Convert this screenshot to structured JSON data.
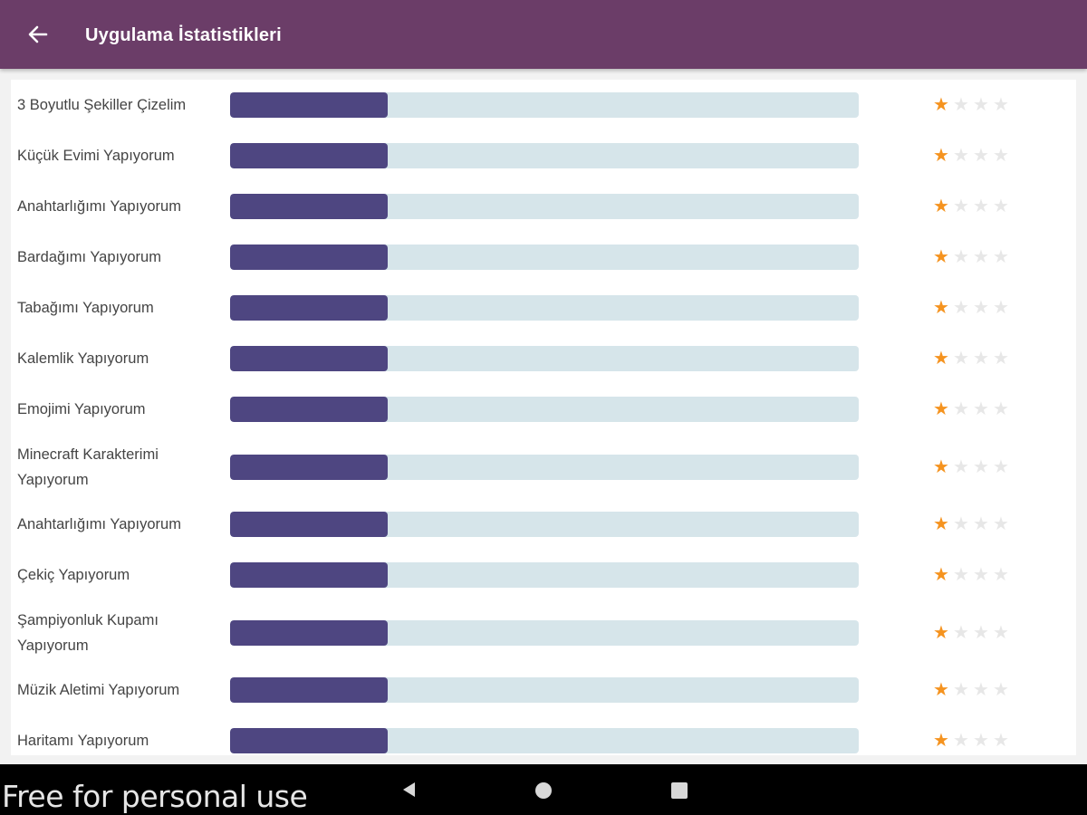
{
  "app": {
    "title": "Uygulama İstatistikleri"
  },
  "colors": {
    "appbar": "#6b3d68",
    "bar_fill": "#4e4681",
    "bar_track": "#d6e5ea",
    "star_on": "#f5931f",
    "star_off": "#e7e7e7"
  },
  "icons": {
    "back": "arrow-left-icon",
    "star": "star-icon"
  },
  "stats": [
    {
      "label": "3 Boyutlu Şekiller Çizelim",
      "progress": 0.25,
      "stars": 1,
      "max_stars": 4
    },
    {
      "label": "Küçük Evimi Yapıyorum",
      "progress": 0.25,
      "stars": 1,
      "max_stars": 4
    },
    {
      "label": "Anahtarlığımı Yapıyorum",
      "progress": 0.25,
      "stars": 1,
      "max_stars": 4
    },
    {
      "label": "Bardağımı Yapıyorum",
      "progress": 0.25,
      "stars": 1,
      "max_stars": 4
    },
    {
      "label": "Tabağımı Yapıyorum",
      "progress": 0.25,
      "stars": 1,
      "max_stars": 4
    },
    {
      "label": "Kalemlik Yapıyorum",
      "progress": 0.25,
      "stars": 1,
      "max_stars": 4
    },
    {
      "label": "Emojimi Yapıyorum",
      "progress": 0.25,
      "stars": 1,
      "max_stars": 4
    },
    {
      "label": "Minecraft Karakterimi Yapıyorum",
      "progress": 0.25,
      "stars": 1,
      "max_stars": 4
    },
    {
      "label": "Anahtarlığımı Yapıyorum",
      "progress": 0.25,
      "stars": 1,
      "max_stars": 4
    },
    {
      "label": "Çekiç Yapıyorum",
      "progress": 0.25,
      "stars": 1,
      "max_stars": 4
    },
    {
      "label": "Şampiyonluk Kupamı Yapıyorum",
      "progress": 0.25,
      "stars": 1,
      "max_stars": 4
    },
    {
      "label": "Müzik Aletimi Yapıyorum",
      "progress": 0.25,
      "stars": 1,
      "max_stars": 4
    },
    {
      "label": "Haritamı Yapıyorum",
      "progress": 0.25,
      "stars": 1,
      "max_stars": 4
    }
  ],
  "watermark": "Free for personal use",
  "navbar": {
    "back": "nav-back-icon",
    "home": "nav-home-icon",
    "recent": "nav-recent-icon"
  }
}
